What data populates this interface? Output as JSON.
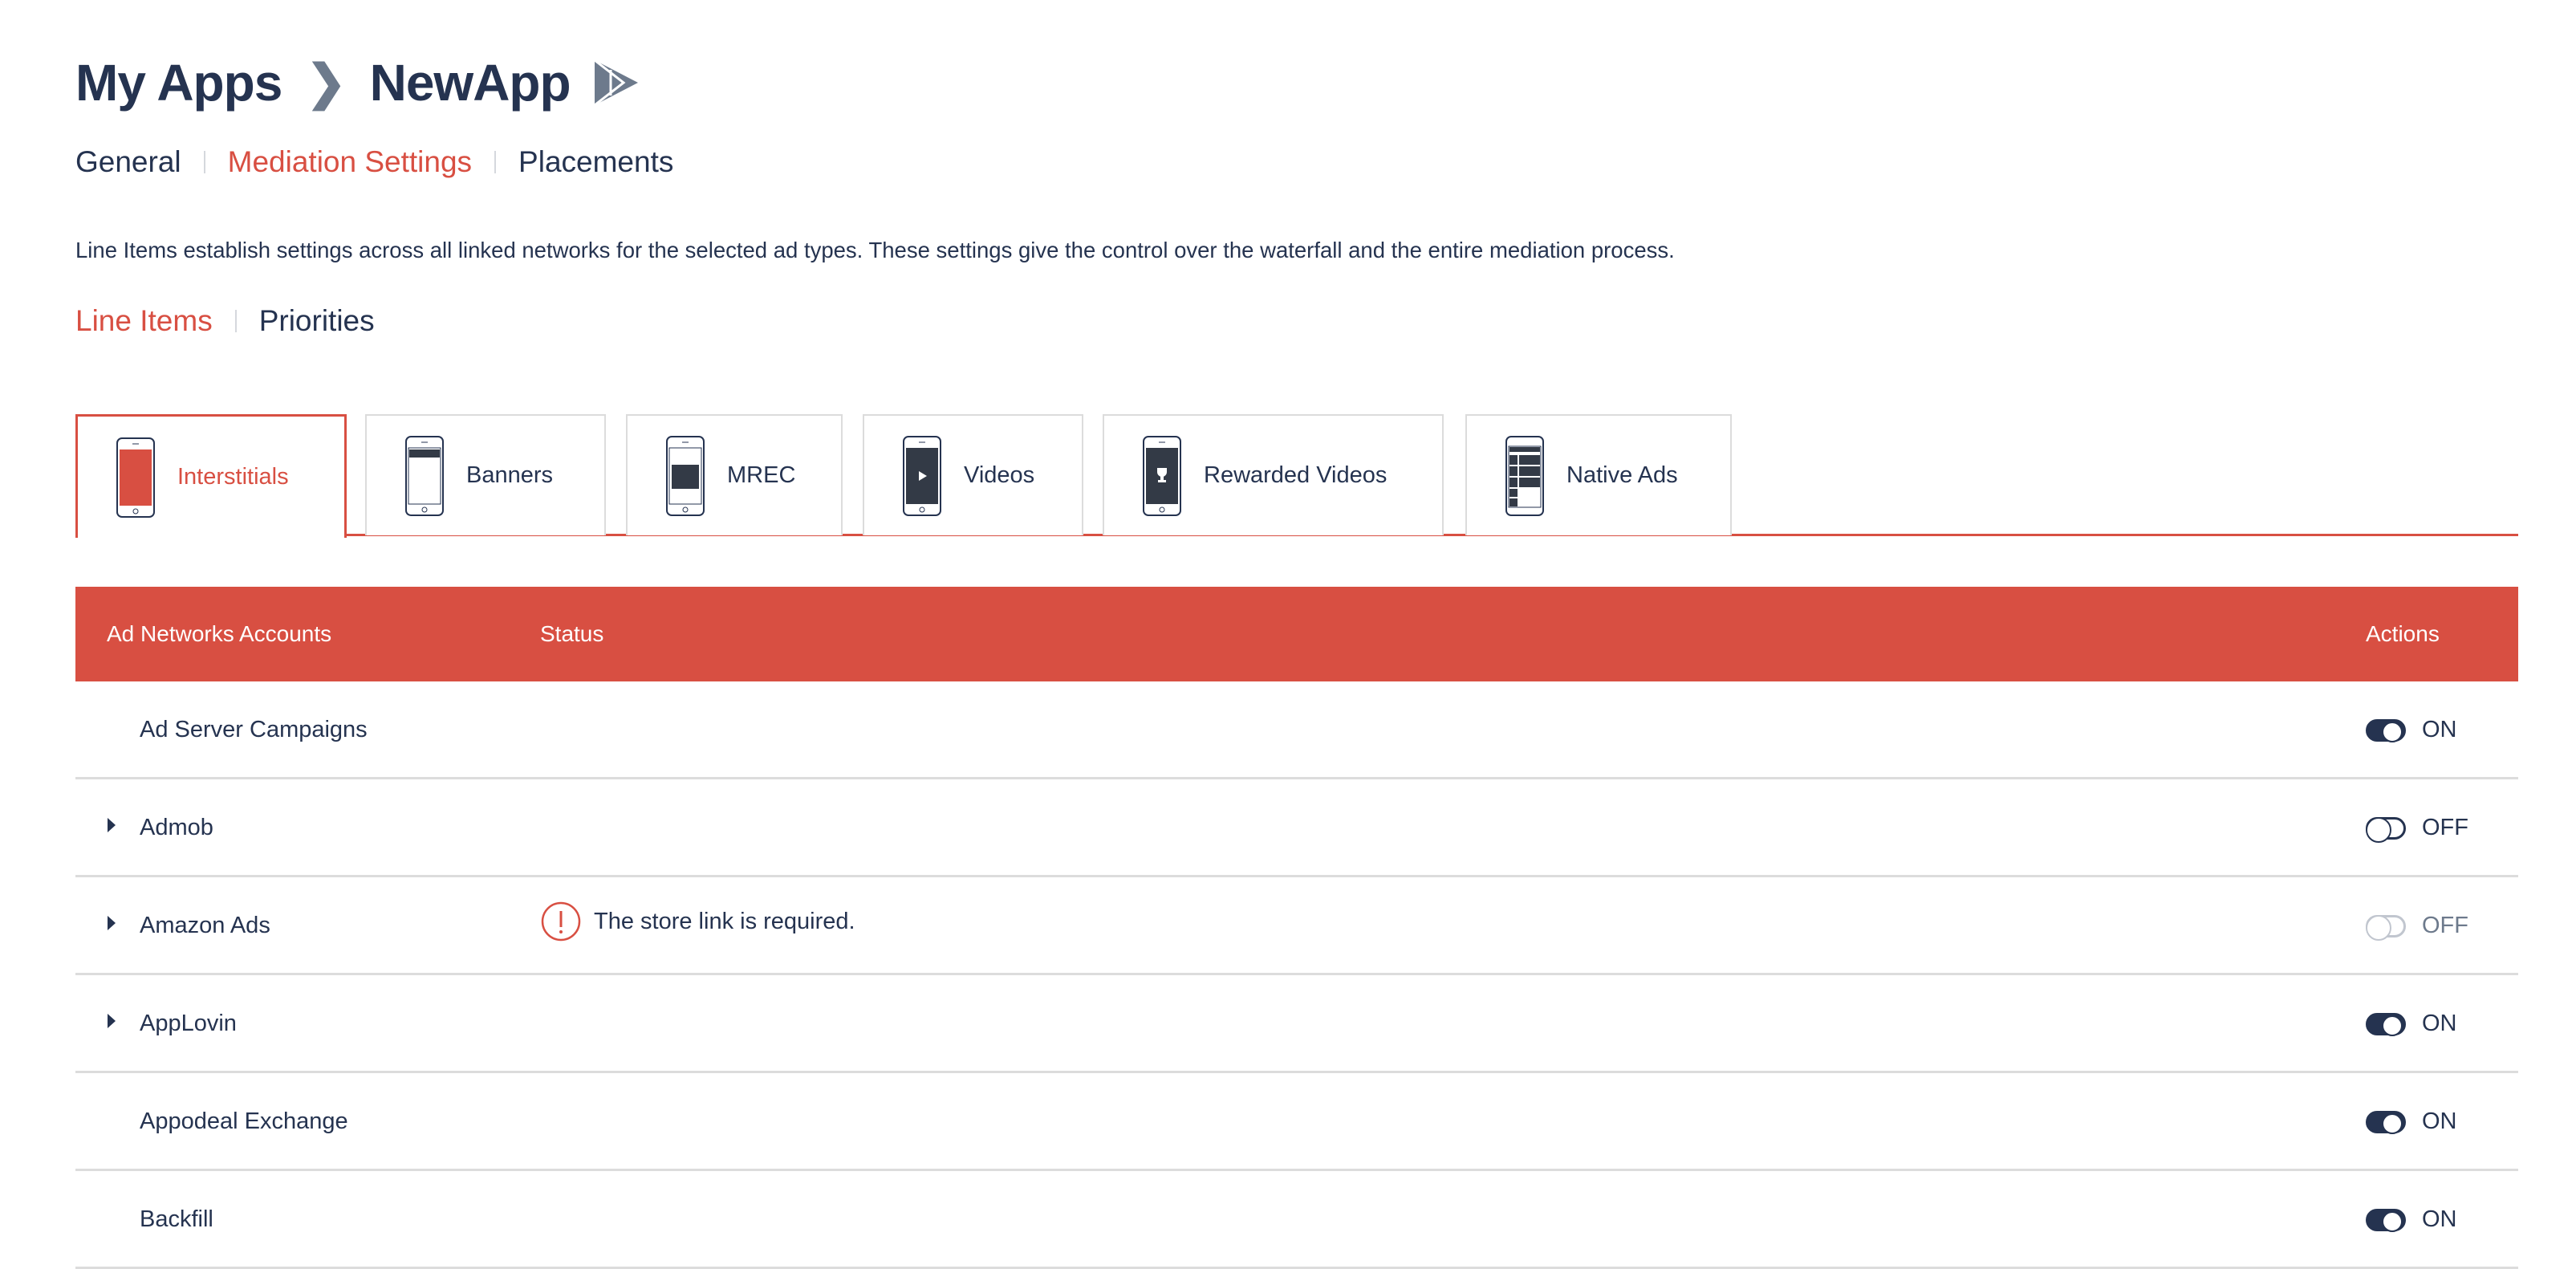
{
  "breadcrumb": {
    "root": "My Apps",
    "app": "NewApp",
    "platform_icon": "google-play-icon"
  },
  "nav": {
    "items": [
      "General",
      "Mediation Settings",
      "Placements"
    ],
    "active": "Mediation Settings"
  },
  "description": "Line Items establish settings across all linked networks for the selected ad types. These settings give the control over the waterfall and the entire mediation process.",
  "subnav": {
    "items": [
      "Line Items",
      "Priorities"
    ],
    "active": "Line Items"
  },
  "ad_types": [
    {
      "label": "Interstitials",
      "icon": "phone-interstitial-icon"
    },
    {
      "label": "Banners",
      "icon": "phone-banner-icon"
    },
    {
      "label": "MREC",
      "icon": "phone-mrec-icon"
    },
    {
      "label": "Videos",
      "icon": "phone-video-icon"
    },
    {
      "label": "Rewarded Videos",
      "icon": "phone-rewarded-icon"
    },
    {
      "label": "Native Ads",
      "icon": "phone-native-icon"
    }
  ],
  "selected_ad_type": "Interstitials",
  "table": {
    "headers": {
      "account": "Ad Networks Accounts",
      "status": "Status",
      "actions": "Actions"
    },
    "rows": [
      {
        "name": "Ad Server Campaigns",
        "expandable": false,
        "status": "",
        "state": "ON",
        "enabled": true
      },
      {
        "name": "Admob",
        "expandable": true,
        "status": "",
        "state": "OFF",
        "enabled": true
      },
      {
        "name": "Amazon Ads",
        "expandable": true,
        "status": "The store link is required.",
        "state": "OFF",
        "enabled": false
      },
      {
        "name": "AppLovin",
        "expandable": true,
        "status": "",
        "state": "ON",
        "enabled": true
      },
      {
        "name": "Appodeal Exchange",
        "expandable": false,
        "status": "",
        "state": "ON",
        "enabled": true
      },
      {
        "name": "Backfill",
        "expandable": false,
        "status": "",
        "state": "ON",
        "enabled": true
      }
    ]
  },
  "colors": {
    "accent": "#d84f42",
    "text": "#253350",
    "border": "#dcdcdc"
  }
}
